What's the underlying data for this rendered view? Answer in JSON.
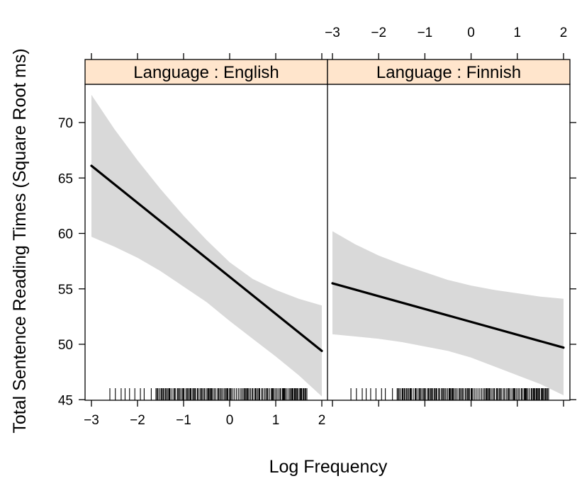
{
  "chart_data": {
    "type": "line",
    "layout": "two panels side by side, strip labels on top, rug plot at bottom",
    "xlabel": "Log Frequency",
    "ylabel": "Total Sentence Reading Times (Square Root ms)",
    "xlim": [
      -3,
      2
    ],
    "ylim": [
      45,
      73
    ],
    "x_ticks": [
      "−3",
      "−2",
      "−1",
      "0",
      "1",
      "2"
    ],
    "x_tick_values": [
      -3,
      -2,
      -1,
      0,
      1,
      2
    ],
    "y_ticks": [
      "45",
      "50",
      "55",
      "60",
      "65",
      "70"
    ],
    "y_tick_values": [
      45,
      50,
      55,
      60,
      65,
      70
    ],
    "x_tick_positions": "bottom on left panel, top on right panel",
    "grid": false,
    "colors": {
      "strip": "#FFE5CC",
      "line": "#000000",
      "band": "#D9D9D9"
    },
    "panels": [
      {
        "strip": "Language : English",
        "line": {
          "x": [
            -3,
            2
          ],
          "y": [
            66.1,
            49.4
          ]
        },
        "band": {
          "x": [
            -3,
            -2.5,
            -2,
            -1.5,
            -1,
            -0.5,
            0,
            0.5,
            1,
            1.5,
            2
          ],
          "upper": [
            72.5,
            69.4,
            66.6,
            64.0,
            61.6,
            59.4,
            57.4,
            55.9,
            54.9,
            54.1,
            53.5
          ],
          "lower": [
            59.7,
            58.8,
            57.8,
            56.6,
            55.2,
            53.8,
            52.1,
            50.5,
            48.9,
            47.2,
            45.3
          ]
        }
      },
      {
        "strip": "Language : Finnish",
        "line": {
          "x": [
            -3,
            2
          ],
          "y": [
            55.5,
            49.7
          ]
        },
        "band": {
          "x": [
            -3,
            -2.5,
            -2,
            -1.5,
            -1,
            -0.5,
            0,
            0.5,
            1,
            1.5,
            2
          ],
          "upper": [
            60.2,
            59.0,
            58.0,
            57.2,
            56.5,
            55.8,
            55.3,
            54.9,
            54.6,
            54.3,
            54.1
          ],
          "lower": [
            50.9,
            50.7,
            50.5,
            50.2,
            49.8,
            49.4,
            48.8,
            48.0,
            47.2,
            46.4,
            45.4
          ]
        }
      }
    ],
    "rug": {
      "x_range": [
        -2.6,
        1.7
      ],
      "density": "sparse near low frequencies, dense above about -1.6"
    }
  }
}
